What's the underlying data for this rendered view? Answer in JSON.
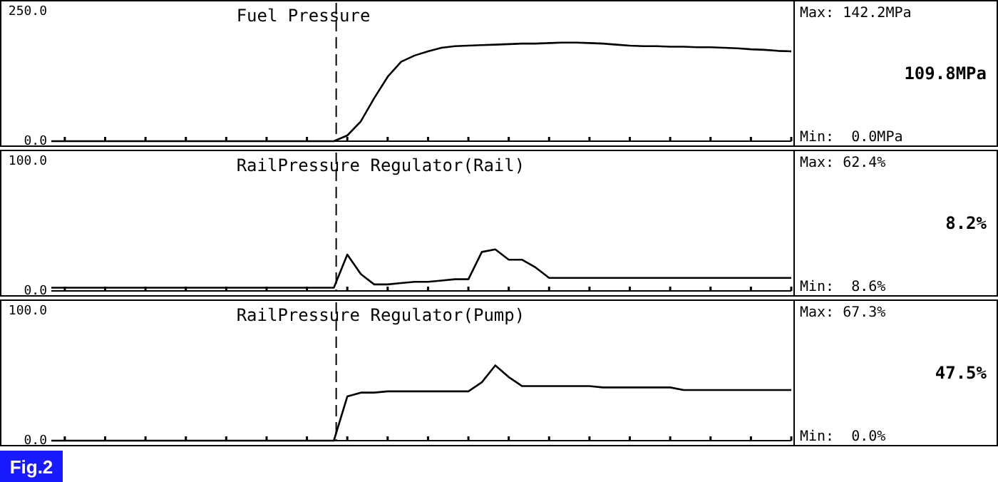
{
  "chart_data": [
    {
      "type": "line",
      "title": "Fuel Pressure",
      "categories": [
        null,
        null,
        null,
        null,
        null,
        null,
        null,
        null,
        null,
        null,
        null,
        null,
        null,
        null,
        null,
        null,
        null,
        null,
        null,
        null,
        null,
        null,
        null,
        null,
        null,
        null,
        null,
        null,
        null,
        null,
        null,
        null,
        null,
        null,
        null,
        null,
        null,
        null,
        null,
        null,
        null,
        null,
        null,
        null,
        null,
        null,
        null,
        null,
        null,
        null,
        null,
        null,
        null,
        null,
        null,
        null
      ],
      "series": [
        {
          "color": "#000000",
          "values": [
            0,
            0,
            0,
            0,
            0,
            0,
            0,
            0,
            0,
            0,
            0,
            0,
            0,
            0,
            0,
            0,
            0,
            0,
            0,
            0,
            0,
            0,
            11,
            38,
            83,
            124,
            153,
            165,
            173,
            180,
            183,
            184,
            185,
            186,
            187,
            188,
            188,
            189,
            190,
            190,
            189,
            188,
            186,
            184,
            183,
            183,
            182,
            182,
            181,
            181,
            180,
            179,
            177,
            176,
            174,
            173
          ]
        }
      ],
      "ylim": [
        0,
        250
      ],
      "yticks": [
        {
          "value": 0,
          "label": "0.0"
        },
        {
          "value": 250,
          "label": "250.0"
        }
      ],
      "annotations": [
        "Max: 142.2MPa",
        "109.8MPa",
        "Min:  0.0MPa"
      ],
      "tick_labels": "y",
      "grid": false,
      "marker": "none",
      "line_style": "solid"
    },
    {
      "type": "line",
      "title": "RailPressure Regulator(Rail)",
      "categories": [
        null,
        null,
        null,
        null,
        null,
        null,
        null,
        null,
        null,
        null,
        null,
        null,
        null,
        null,
        null,
        null,
        null,
        null,
        null,
        null,
        null,
        null,
        null,
        null,
        null,
        null,
        null,
        null,
        null,
        null,
        null,
        null,
        null,
        null,
        null,
        null,
        null,
        null,
        null,
        null,
        null,
        null,
        null,
        null,
        null,
        null,
        null,
        null,
        null,
        null,
        null,
        null,
        null,
        null,
        null,
        null
      ],
      "series": [
        {
          "color": "#000000",
          "values": [
            2.5,
            2.5,
            2.5,
            2.5,
            2.5,
            2.5,
            2.5,
            2.5,
            2.5,
            2.5,
            2.5,
            2.5,
            2.5,
            2.5,
            2.5,
            2.5,
            2.5,
            2.5,
            2.5,
            2.5,
            2.5,
            2.5,
            28,
            13,
            5,
            5,
            6,
            7,
            7,
            8,
            9,
            9,
            30,
            32,
            24,
            24,
            18,
            10,
            10,
            10,
            10,
            10,
            10,
            10,
            10,
            10,
            10,
            10,
            10,
            10,
            10,
            10,
            10,
            10,
            10,
            10
          ]
        }
      ],
      "ylim": [
        0,
        100
      ],
      "yticks": [
        {
          "value": 0,
          "label": "0.0"
        },
        {
          "value": 100,
          "label": "100.0"
        }
      ],
      "annotations": [
        "Max: 62.4%",
        "8.2%",
        "Min:  8.6%"
      ],
      "tick_labels": "y",
      "grid": false,
      "marker": "none",
      "line_style": "solid"
    },
    {
      "type": "line",
      "title": "RailPressure Regulator(Pump)",
      "categories": [
        null,
        null,
        null,
        null,
        null,
        null,
        null,
        null,
        null,
        null,
        null,
        null,
        null,
        null,
        null,
        null,
        null,
        null,
        null,
        null,
        null,
        null,
        null,
        null,
        null,
        null,
        null,
        null,
        null,
        null,
        null,
        null,
        null,
        null,
        null,
        null,
        null,
        null,
        null,
        null,
        null,
        null,
        null,
        null,
        null,
        null,
        null,
        null,
        null,
        null,
        null,
        null,
        null,
        null,
        null,
        null
      ],
      "series": [
        {
          "color": "#000000",
          "values": [
            0,
            0,
            0,
            0,
            0,
            0,
            0,
            0,
            0,
            0,
            0,
            0,
            0,
            0,
            0,
            0,
            0,
            0,
            0,
            0,
            0,
            0,
            34,
            37,
            37,
            38,
            38,
            38,
            38,
            38,
            38,
            38,
            45,
            58,
            49,
            42,
            42,
            42,
            42,
            42,
            42,
            41,
            41,
            41,
            41,
            41,
            41,
            39,
            39,
            39,
            39,
            39,
            39,
            39,
            39,
            39
          ]
        }
      ],
      "ylim": [
        0,
        100
      ],
      "yticks": [
        {
          "value": 0,
          "label": "0.0"
        },
        {
          "value": 100,
          "label": "100.0"
        }
      ],
      "annotations": [
        "Max: 67.3%",
        "47.5%",
        "Min:  0.0%",
        "Fig.2"
      ],
      "tick_labels": "y",
      "grid": false,
      "marker": "none",
      "line_style": "solid"
    }
  ]
}
